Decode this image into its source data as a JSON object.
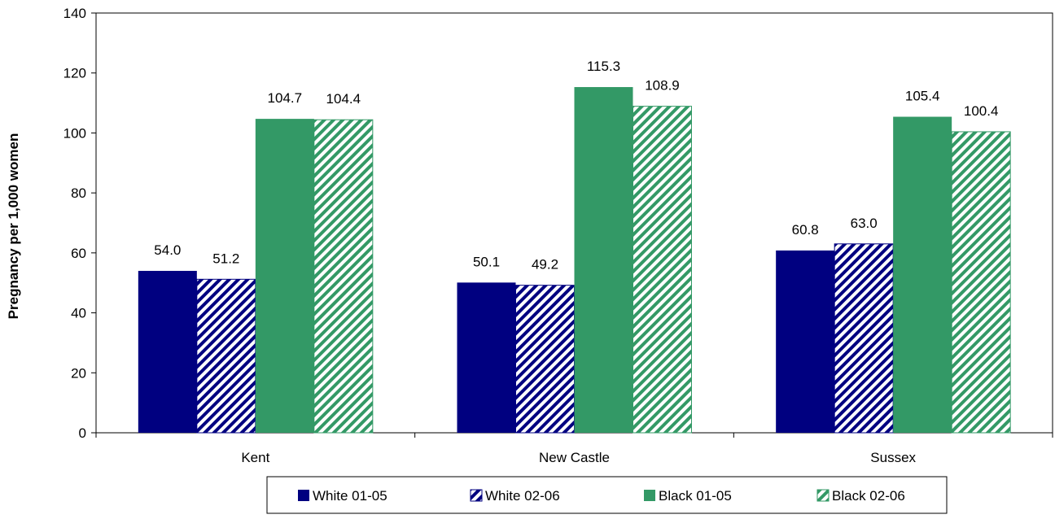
{
  "chart_data": {
    "type": "bar",
    "title": "",
    "xlabel": "",
    "ylabel": "Pregnancy per 1,000 women",
    "ylim": [
      0,
      140
    ],
    "yticks": [
      0,
      20,
      40,
      60,
      80,
      100,
      120,
      140
    ],
    "grid": false,
    "legend_position": "bottom",
    "categories": [
      "Kent",
      "New Castle",
      "Sussex"
    ],
    "series": [
      {
        "name": "White 01-05",
        "values": [
          54.0,
          50.1,
          60.8
        ],
        "color": "#000080",
        "pattern": "solid"
      },
      {
        "name": "White 02-06",
        "values": [
          51.2,
          49.2,
          63.0
        ],
        "color": "#000080",
        "pattern": "hatch"
      },
      {
        "name": "Black 01-05",
        "values": [
          104.7,
          115.3,
          105.4
        ],
        "color": "#339966",
        "pattern": "solid"
      },
      {
        "name": "Black 02-06",
        "values": [
          104.4,
          108.9,
          100.4
        ],
        "color": "#339966",
        "pattern": "hatch"
      }
    ]
  }
}
